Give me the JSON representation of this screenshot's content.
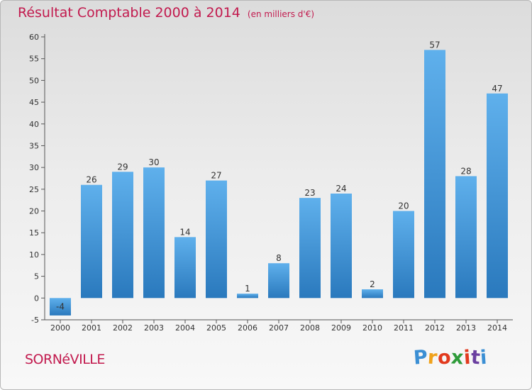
{
  "chart_data": {
    "type": "bar",
    "title": "Résultat Comptable 2000 à 2014",
    "unit_label": "(en milliers d'€)",
    "categories": [
      "2000",
      "2001",
      "2002",
      "2003",
      "2004",
      "2005",
      "2006",
      "2007",
      "2008",
      "2009",
      "2010",
      "2011",
      "2012",
      "2013",
      "2014"
    ],
    "values": [
      -4,
      26,
      29,
      30,
      14,
      27,
      1,
      8,
      23,
      24,
      2,
      20,
      57,
      28,
      47
    ],
    "data_labels": [
      "-4",
      "26",
      "29",
      "30",
      "14",
      "27",
      "1",
      "8",
      "23",
      "24",
      "2",
      "20",
      "57",
      "28",
      "47"
    ],
    "ylim": [
      -5,
      60
    ],
    "yticks": [
      -5,
      0,
      5,
      10,
      15,
      20,
      25,
      30,
      35,
      40,
      45,
      50,
      55,
      60
    ],
    "grid": false,
    "bar_color": "#3d94d6",
    "xlabel": "",
    "ylabel": ""
  },
  "footer": {
    "commune": "SORNéVILLE",
    "logo_letters": [
      "P",
      "r",
      "o",
      "x",
      "i",
      "t",
      "i"
    ],
    "logo_colors": [
      "#3b8fd4",
      "#f0a21b",
      "#e23a1e",
      "#2f9b3a",
      "#e23a1e",
      "#6a3fa0",
      "#3b8fd4"
    ]
  }
}
